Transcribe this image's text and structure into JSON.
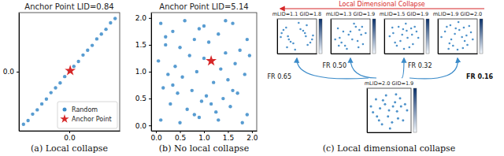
{
  "chart_data": [
    {
      "type": "scatter",
      "title": "Anchor Point LID=0.84",
      "annotations": [
        "(a) Local collapse"
      ],
      "legend": "lower right",
      "xlim": [
        -1.1,
        1.1
      ],
      "ylim": [
        -1.1,
        1.1
      ],
      "xticks": [
        {
          "value": 0,
          "label": "0.0"
        }
      ],
      "yticks": [
        {
          "value": 0,
          "label": "0.0"
        }
      ],
      "series": [
        {
          "name": "Random",
          "color": "#3b8bc9",
          "marker": "circle",
          "x": [
            -1,
            -0.9,
            -0.8,
            -0.7,
            -0.6,
            -0.5,
            -0.4,
            -0.3,
            -0.2,
            -0.1,
            0,
            0.1,
            0.2,
            0.3,
            0.4,
            0.5,
            0.6,
            0.7,
            0.8,
            0.9,
            1
          ],
          "values": [
            -0.98,
            -0.91,
            -0.79,
            -0.71,
            -0.6,
            -0.51,
            -0.39,
            -0.3,
            -0.21,
            -0.09,
            0.01,
            0.1,
            0.19,
            0.31,
            0.4,
            0.49,
            0.61,
            0.7,
            0.79,
            0.91,
            0.99
          ]
        },
        {
          "name": "Anchor Point",
          "color": "#d62728",
          "marker": "star",
          "x": [
            0.02
          ],
          "values": [
            0.02
          ]
        }
      ]
    },
    {
      "type": "scatter",
      "title": "Anchor Point LID=5.14",
      "annotations": [
        "(b) No local collapse"
      ],
      "xlim": [
        -0.1,
        2.1
      ],
      "ylim": [
        -0.1,
        2.1
      ],
      "xticks": [
        {
          "value": 0,
          "label": "0.0"
        },
        {
          "value": 0.5,
          "label": "0.5"
        },
        {
          "value": 1,
          "label": "1.0"
        },
        {
          "value": 1.5,
          "label": "1.5"
        },
        {
          "value": 2,
          "label": "2.0"
        }
      ],
      "yticks": [
        {
          "value": 0,
          "label": "0.0"
        },
        {
          "value": 0.5,
          "label": "0.5"
        },
        {
          "value": 1,
          "label": "1.0"
        },
        {
          "value": 1.5,
          "label": "1.5"
        },
        {
          "value": 2,
          "label": "2.0"
        }
      ],
      "series": [
        {
          "color": "#3b8bc9",
          "marker": "circle",
          "x": [
            0.1,
            0.35,
            0.6,
            0.9,
            1.3,
            1.6,
            1.9,
            0.2,
            0.5,
            0.8,
            1.1,
            1.45,
            1.75,
            0.05,
            0.4,
            0.7,
            1.0,
            1.35,
            1.65,
            1.95,
            0.25,
            0.55,
            0.85,
            1.2,
            1.5,
            1.85,
            0.15,
            0.45,
            0.75,
            1.05,
            1.4,
            1.7,
            0.3,
            0.65,
            0.95,
            1.25,
            1.55,
            1.9,
            0.1,
            0.5,
            0.9,
            1.3,
            1.8,
            0.35,
            0.8,
            1.15,
            1.6,
            0.2,
            1.0,
            1.45
          ],
          "values": [
            1.9,
            1.75,
            1.95,
            1.8,
            1.7,
            1.9,
            1.6,
            1.5,
            1.45,
            1.6,
            1.55,
            1.35,
            1.4,
            1.2,
            1.1,
            1.3,
            1.25,
            1.05,
            1.15,
            1.3,
            0.95,
            0.9,
            1.0,
            0.8,
            0.85,
            0.95,
            0.7,
            0.6,
            0.65,
            0.55,
            0.5,
            0.6,
            0.4,
            0.3,
            0.45,
            0.25,
            0.35,
            0.2,
            0.1,
            0.05,
            0.15,
            0.1,
            0.05,
            0.75,
            0.2,
            0.4,
            0.65,
            1.65,
            1.85,
            1.95
          ]
        },
        {
          "color": "#d62728",
          "marker": "star",
          "x": [
            1.15
          ],
          "values": [
            1.2
          ]
        }
      ]
    },
    {
      "type": "scatter",
      "title": "mLID=1.1 GID=1.8",
      "tick_labels": false,
      "xlim": [
        -1.1,
        1.1
      ],
      "ylim": [
        -1.1,
        1.1
      ],
      "series": [
        {
          "color": "#2f7fc1",
          "marker": "circle",
          "x": [
            0.2,
            0.35,
            0.45,
            0.5,
            -0.2,
            -0.35,
            -0.45,
            -0.5,
            0.6,
            0.75,
            0.85,
            0.9,
            -0.6,
            -0.75,
            -0.85,
            -0.9,
            0.1,
            -0.1,
            0.55,
            -0.55
          ],
          "values": [
            0.45,
            0.35,
            0.2,
            0.0,
            -0.45,
            -0.35,
            -0.2,
            0.0,
            -0.55,
            -0.4,
            -0.2,
            0.05,
            0.55,
            0.4,
            0.2,
            -0.05,
            0.85,
            -0.85,
            0.7,
            -0.7
          ]
        }
      ]
    },
    {
      "type": "scatter",
      "title": "mLID=1.3 GID=1.9",
      "tick_labels": false,
      "xlim": [
        -1.1,
        1.1
      ],
      "ylim": [
        -1.1,
        1.1
      ],
      "series": [
        {
          "color": "#2f7fc1",
          "marker": "circle",
          "x": [
            0.3,
            0.5,
            0.6,
            0.4,
            -0.3,
            -0.5,
            -0.6,
            -0.4,
            0.7,
            0.85,
            0.2,
            -0.7,
            -0.85,
            -0.2,
            0.0,
            0.1,
            -0.1,
            0.65,
            -0.65,
            0.45
          ],
          "values": [
            0.6,
            0.4,
            0.1,
            -0.3,
            -0.6,
            -0.4,
            -0.1,
            0.3,
            -0.5,
            0.2,
            0.8,
            0.5,
            -0.2,
            -0.8,
            0.3,
            -0.2,
            0.1,
            0.6,
            -0.6,
            -0.7
          ]
        }
      ]
    },
    {
      "type": "scatter",
      "title": "mLID=1.5 GID=1.9",
      "tick_labels": false,
      "xlim": [
        -1.1,
        1.1
      ],
      "ylim": [
        -1.1,
        1.1
      ],
      "series": [
        {
          "color": "#2f7fc1",
          "marker": "circle",
          "x": [
            0.1,
            0.4,
            -0.3,
            0.7,
            -0.6,
            0.2,
            -0.1,
            0.5,
            -0.5,
            0.8,
            -0.8,
            0.0,
            0.3,
            -0.4,
            0.6,
            -0.2,
            0.45,
            -0.65,
            0.15,
            -0.05
          ],
          "values": [
            0.8,
            0.5,
            0.6,
            0.3,
            0.2,
            -0.1,
            0.1,
            -0.5,
            -0.4,
            -0.1,
            0.0,
            -0.8,
            -0.7,
            -0.6,
            0.6,
            -0.3,
            0.1,
            0.55,
            0.35,
            0.45
          ]
        }
      ]
    },
    {
      "type": "scatter",
      "title": "mLID=1.9 GID=2.0",
      "tick_labels": false,
      "xlim": [
        -1.1,
        1.1
      ],
      "ylim": [
        -1.1,
        1.1
      ],
      "series": [
        {
          "color": "#2f7fc1",
          "marker": "circle",
          "x": [
            0.05,
            0.35,
            -0.4,
            0.75,
            -0.7,
            0.25,
            -0.15,
            0.55,
            -0.45,
            0.85,
            -0.9,
            0.0,
            0.3,
            -0.35,
            0.65,
            -0.25,
            0.5,
            -0.6,
            0.1,
            -0.1,
            0.4,
            -0.5
          ],
          "values": [
            0.9,
            0.55,
            0.7,
            0.25,
            0.3,
            -0.05,
            0.15,
            -0.55,
            -0.45,
            -0.2,
            -0.05,
            -0.85,
            -0.75,
            -0.2,
            0.65,
            -0.6,
            0.05,
            0.6,
            0.4,
            0.5,
            -0.3,
            -0.8
          ]
        }
      ]
    },
    {
      "type": "scatter",
      "title": "mLID=2.0 GID=1.9",
      "tick_labels": false,
      "xlim": [
        -1.1,
        1.1
      ],
      "ylim": [
        -1.1,
        1.1
      ],
      "annotations": [
        "Local Dimensional Collapse",
        "FR 0.65",
        "FR 0.50",
        "FR 0.32",
        "FR 0.16",
        "(c) Local dimensional collapse"
      ],
      "series": [
        {
          "color": "#2f7fc1",
          "marker": "circle",
          "x": [
            0.0,
            0.3,
            -0.3,
            0.6,
            -0.6,
            0.15,
            -0.15,
            0.45,
            -0.45,
            0.8,
            -0.8,
            0.05,
            0.35,
            -0.35,
            0.7,
            -0.2,
            0.55,
            -0.65,
            0.2,
            -0.05,
            0.4,
            -0.5,
            0.9,
            -0.9
          ],
          "values": [
            0.0,
            0.4,
            0.5,
            0.2,
            -0.3,
            -0.6,
            0.75,
            -0.4,
            0.1,
            0.3,
            -0.1,
            -0.9,
            0.8,
            -0.7,
            -0.5,
            0.3,
            0.6,
            0.55,
            0.2,
            -0.3,
            -0.05,
            -0.5,
            0.0,
            0.2
          ]
        }
      ]
    }
  ]
}
